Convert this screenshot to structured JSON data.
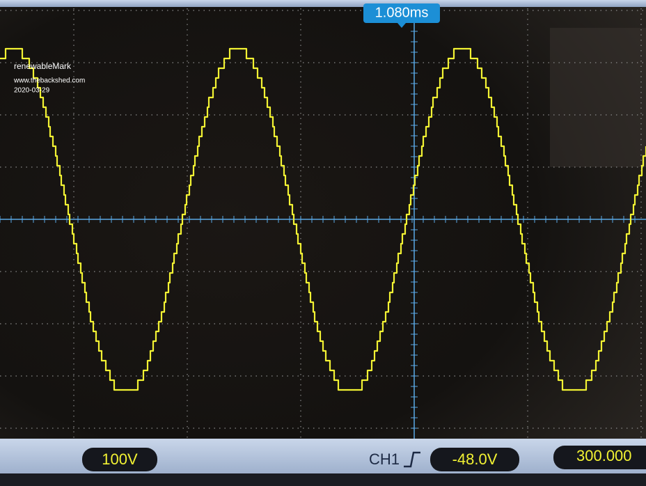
{
  "header": {
    "timebase": "1.080ms"
  },
  "watermark": {
    "author": "renewableMark",
    "site": "www.thebackshed.com",
    "date": "2020-03-29"
  },
  "footer": {
    "volts_div": "100V",
    "channel": "CH1",
    "trigger_level": "-48.0V",
    "time_offset": "300.000"
  }
}
